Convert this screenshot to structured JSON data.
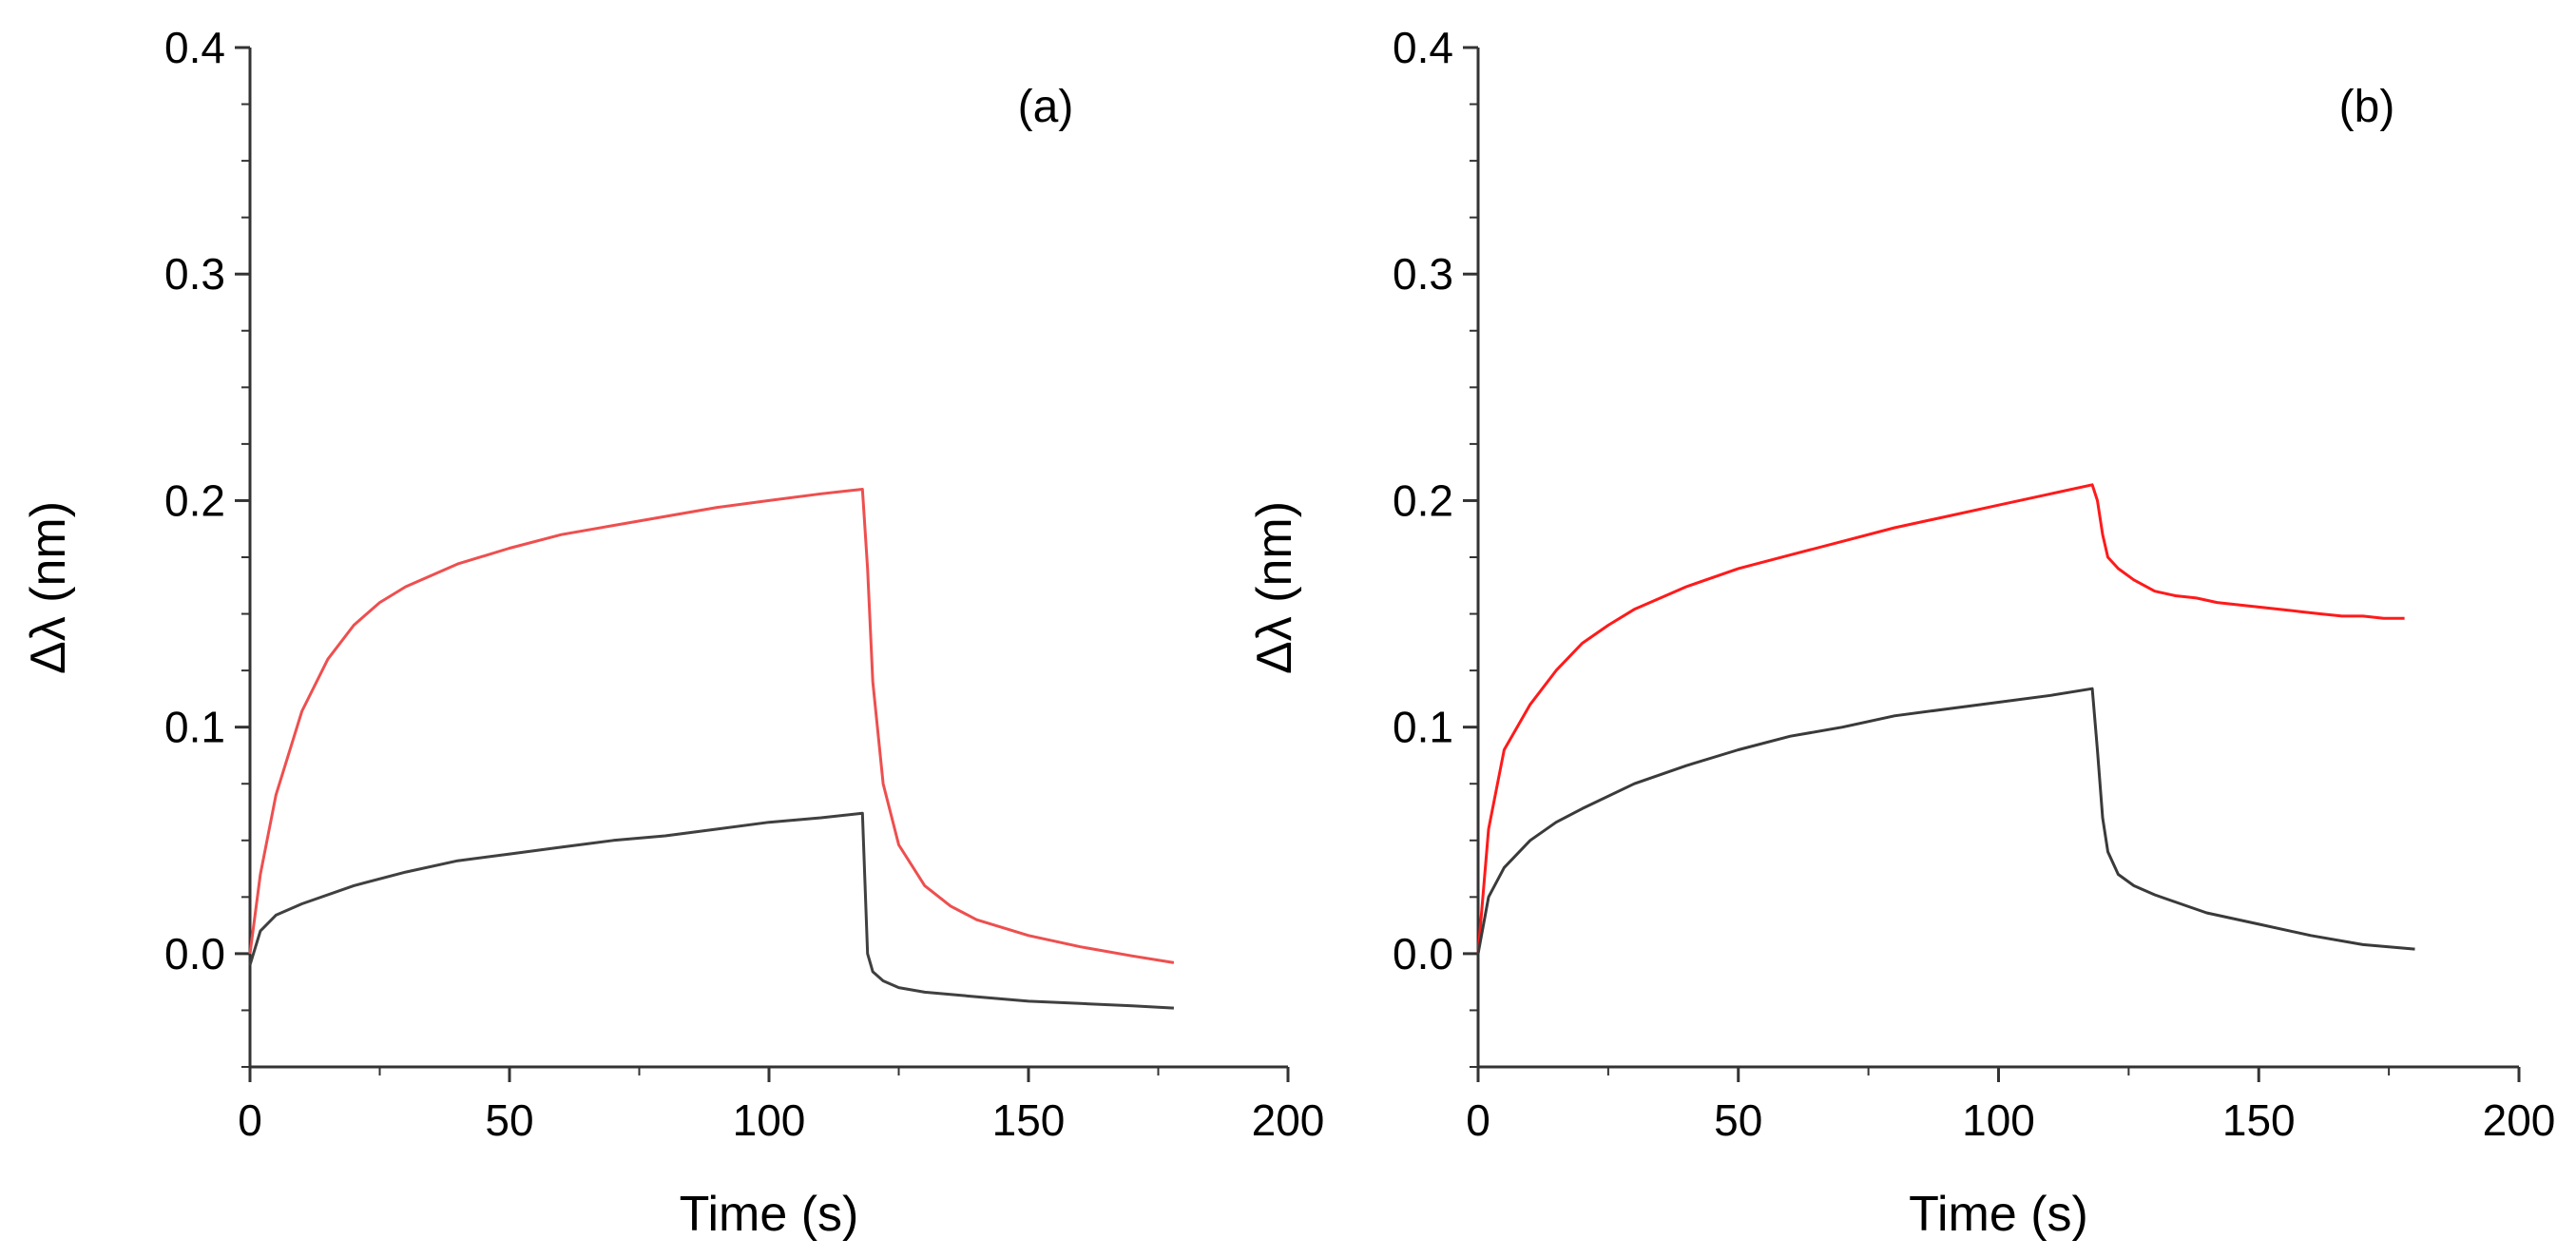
{
  "chart_data": [
    {
      "type": "line",
      "panel_label": "(a)",
      "xlabel": "Time (s)",
      "ylabel": "Δλ (nm)",
      "xlim": [
        0,
        200
      ],
      "ylim": [
        -0.05,
        0.4
      ],
      "xticks": [
        0,
        50,
        100,
        150,
        200
      ],
      "xtick_labels": [
        "0",
        "50",
        "100",
        "150",
        "200"
      ],
      "yticks": [
        0.0,
        0.1,
        0.2,
        0.3,
        0.4
      ],
      "ytick_labels": [
        "0.0",
        "0.1",
        "0.2",
        "0.3",
        "0.4"
      ],
      "grid": false,
      "series": [
        {
          "name": "upper trace",
          "color": "#ee4f4f",
          "x": [
            0,
            2,
            5,
            10,
            15,
            20,
            25,
            30,
            40,
            50,
            60,
            70,
            80,
            90,
            100,
            110,
            118,
            119,
            120,
            122,
            125,
            130,
            135,
            140,
            150,
            160,
            170,
            178
          ],
          "y": [
            0.0,
            0.035,
            0.07,
            0.107,
            0.13,
            0.145,
            0.155,
            0.162,
            0.172,
            0.179,
            0.185,
            0.189,
            0.193,
            0.197,
            0.2,
            0.203,
            0.205,
            0.17,
            0.12,
            0.075,
            0.048,
            0.03,
            0.021,
            0.015,
            0.008,
            0.003,
            -0.001,
            -0.004
          ]
        },
        {
          "name": "lower trace",
          "color": "#404040",
          "x": [
            0,
            2,
            5,
            10,
            20,
            30,
            40,
            50,
            60,
            70,
            80,
            90,
            100,
            110,
            118,
            119,
            120,
            122,
            125,
            130,
            140,
            150,
            160,
            170,
            178
          ],
          "y": [
            -0.005,
            0.01,
            0.017,
            0.022,
            0.03,
            0.036,
            0.041,
            0.044,
            0.047,
            0.05,
            0.052,
            0.055,
            0.058,
            0.06,
            0.062,
            0.0,
            -0.008,
            -0.012,
            -0.015,
            -0.017,
            -0.019,
            -0.021,
            -0.022,
            -0.023,
            -0.024
          ]
        }
      ]
    },
    {
      "type": "line",
      "panel_label": "(b)",
      "xlabel": "Time (s)",
      "ylabel": "Δλ (nm)",
      "xlim": [
        0,
        200
      ],
      "ylim": [
        -0.05,
        0.4
      ],
      "xticks": [
        0,
        50,
        100,
        150,
        200
      ],
      "xtick_labels": [
        "0",
        "50",
        "100",
        "150",
        "200"
      ],
      "yticks": [
        0.0,
        0.1,
        0.2,
        0.3,
        0.4
      ],
      "ytick_labels": [
        "0.0",
        "0.1",
        "0.2",
        "0.3",
        "0.4"
      ],
      "grid": false,
      "series": [
        {
          "name": "upper trace",
          "color": "#ff1a1a",
          "x": [
            0,
            2,
            5,
            10,
            15,
            20,
            25,
            30,
            40,
            50,
            60,
            70,
            80,
            90,
            100,
            110,
            118,
            119,
            120,
            121,
            123,
            126,
            130,
            134,
            138,
            142,
            146,
            150,
            154,
            158,
            162,
            166,
            170,
            174,
            178
          ],
          "y": [
            0.0,
            0.055,
            0.09,
            0.11,
            0.125,
            0.137,
            0.145,
            0.152,
            0.162,
            0.17,
            0.176,
            0.182,
            0.188,
            0.193,
            0.198,
            0.203,
            0.207,
            0.2,
            0.185,
            0.175,
            0.17,
            0.165,
            0.16,
            0.158,
            0.157,
            0.155,
            0.154,
            0.153,
            0.152,
            0.151,
            0.15,
            0.149,
            0.149,
            0.148,
            0.148
          ]
        },
        {
          "name": "lower trace",
          "color": "#3a3a3a",
          "x": [
            0,
            2,
            5,
            10,
            15,
            20,
            30,
            40,
            50,
            60,
            70,
            80,
            90,
            100,
            110,
            118,
            119,
            120,
            121,
            123,
            126,
            130,
            135,
            140,
            150,
            160,
            170,
            180
          ],
          "y": [
            0.0,
            0.025,
            0.038,
            0.05,
            0.058,
            0.064,
            0.075,
            0.083,
            0.09,
            0.096,
            0.1,
            0.105,
            0.108,
            0.111,
            0.114,
            0.117,
            0.09,
            0.06,
            0.045,
            0.035,
            0.03,
            0.026,
            0.022,
            0.018,
            0.013,
            0.008,
            0.004,
            0.002
          ]
        }
      ]
    }
  ]
}
